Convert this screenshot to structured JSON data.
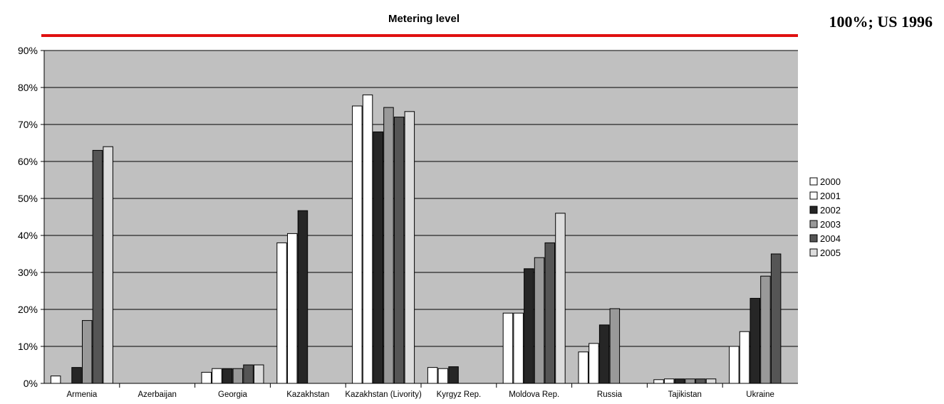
{
  "header": {
    "title": "Metering level",
    "side_note": "100%; US 1996"
  },
  "colors": {
    "plot_background": "#c0c0c0",
    "rule": "#e01010"
  },
  "chart_data": {
    "type": "bar",
    "title": "Metering level",
    "xlabel": "",
    "ylabel": "",
    "ylim": [
      0,
      0.9
    ],
    "y_ticks": [
      "0%",
      "10%",
      "20%",
      "30%",
      "40%",
      "50%",
      "60%",
      "70%",
      "80%",
      "90%"
    ],
    "grid": true,
    "legend_position": "right",
    "categories": [
      "Armenia",
      "Azerbaijan",
      "Georgia",
      "Kazakhstan",
      "Kazakhstan (Livority)",
      "Kyrgyz Rep.",
      "Moldova Rep.",
      "Russia",
      "Tajikistan",
      "Ukraine"
    ],
    "series": [
      {
        "name": "2000",
        "color": "#ffffff",
        "values": [
          0.02,
          null,
          0.03,
          0.38,
          0.75,
          0.043,
          0.19,
          0.085,
          0.01,
          0.1
        ]
      },
      {
        "name": "2001",
        "color": "#ffffff",
        "values": [
          null,
          null,
          0.04,
          0.405,
          0.78,
          0.04,
          0.19,
          0.108,
          0.012,
          0.14
        ]
      },
      {
        "name": "2002",
        "color": "#262626",
        "values": [
          0.043,
          null,
          0.04,
          0.467,
          0.68,
          0.045,
          0.31,
          0.158,
          0.012,
          0.23
        ]
      },
      {
        "name": "2003",
        "color": "#999999",
        "values": [
          0.17,
          null,
          0.04,
          null,
          0.746,
          null,
          0.34,
          0.202,
          0.012,
          0.29
        ]
      },
      {
        "name": "2004",
        "color": "#555555",
        "values": [
          0.63,
          null,
          0.05,
          null,
          0.72,
          null,
          0.38,
          null,
          0.012,
          0.35
        ]
      },
      {
        "name": "2005",
        "color": "#dddddd",
        "values": [
          0.64,
          null,
          0.05,
          null,
          0.735,
          null,
          0.46,
          null,
          0.012,
          null
        ]
      }
    ]
  }
}
